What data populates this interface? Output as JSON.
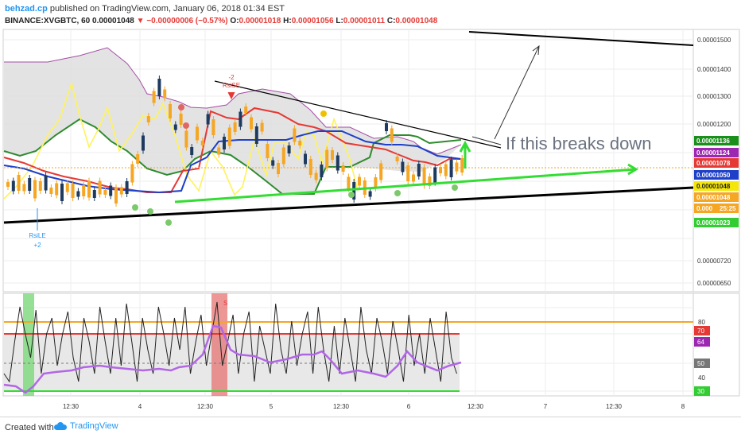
{
  "header": {
    "author": "behzad.cp",
    "published": " published on TradingView.com, January 06, 2018 01:34 EST",
    "symbol": "BINANCE:XVGBTC, 60",
    "last": "0.00001048",
    "change": "▼ −0.00000006 (−0.57%)",
    "o_label": "O:",
    "o_value": "0.00001018",
    "h_label": "H:",
    "h_value": "0.00001056",
    "l_label": "L:",
    "l_value": "0.00001011",
    "c_label": "C:",
    "c_value": "0.00001048"
  },
  "price_axis": {
    "ticks": [
      "0.00001500",
      "0.00001400",
      "0.00001300",
      "0.00001200",
      "0.00000720",
      "0.00000650"
    ],
    "tags": [
      {
        "text": "0.00001136",
        "bg": "#1b8f1b",
        "fg": "#ffffff"
      },
      {
        "text": "0.00001124",
        "bg": "#9c27b0",
        "fg": "#ffffff"
      },
      {
        "text": "0.00001078",
        "bg": "#e53935",
        "fg": "#ffffff"
      },
      {
        "text": "0.00001050",
        "bg": "#1e40c8",
        "fg": "#ffffff"
      },
      {
        "text": "0.00001048",
        "bg": "#f5e609",
        "fg": "#222222"
      },
      {
        "text": "0.00001048",
        "bg": "#f5a623",
        "fg": "#ffffff"
      },
      {
        "text": "0.000",
        "bg": "#f5a623",
        "fg": "#ffffff"
      },
      {
        "text": "25:25",
        "bg": "#f5a623",
        "fg": "#ffffff"
      },
      {
        "text": "0.00001023",
        "bg": "#33cc33",
        "fg": "#ffffff"
      }
    ]
  },
  "osc_axis": {
    "ticks": [
      "80",
      "40"
    ],
    "tags": [
      {
        "text": "70",
        "bg": "#e53935",
        "fg": "#ffffff"
      },
      {
        "text": "64",
        "bg": "#9c27b0",
        "fg": "#ffffff"
      },
      {
        "text": "50",
        "bg": "#777777",
        "fg": "#ffffff"
      },
      {
        "text": "30",
        "bg": "#33cc33",
        "fg": "#ffffff"
      }
    ]
  },
  "time_axis": [
    "12:30",
    "4",
    "12:30",
    "5",
    "12:30",
    "6",
    "12:30",
    "7",
    "12:30",
    "8"
  ],
  "annotations": {
    "breakdown": "If this breaks down",
    "signal_label": "RsiLE",
    "signal_count": "+2",
    "minus_two": "-2",
    "short_label": "RsiSE",
    "osc_marker": "S"
  },
  "footer": {
    "created_with": "Created with",
    "brand": "TradingView"
  },
  "colors": {
    "up": "#f5a623",
    "down": "#1e3a5f",
    "tenkan": "#1e40c8",
    "kijun": "#e53935",
    "chikou": "#fff35a",
    "span_green": "#2e8b2e",
    "span_purple": "#a64ca6",
    "support": "#000000",
    "trend_green": "#33dd33",
    "rsi": "#b266e6"
  }
}
